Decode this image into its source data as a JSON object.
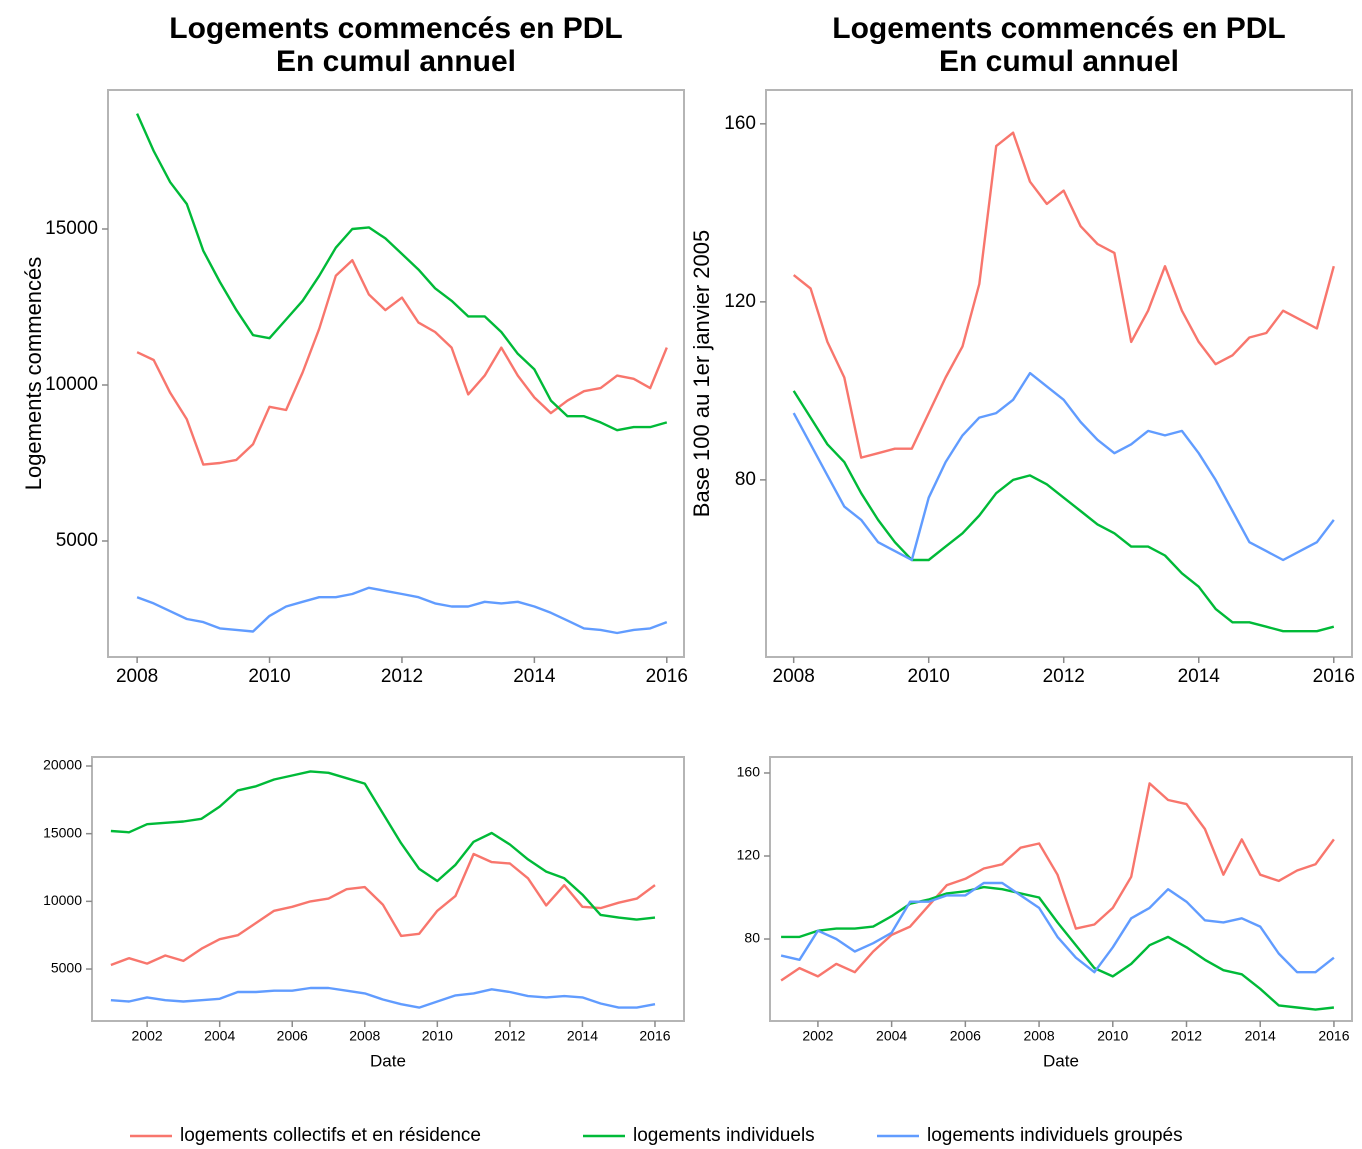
{
  "chart_data": [
    {
      "type": "line",
      "title": [
        "Logements commencés en PDL",
        "En cumul annuel"
      ],
      "y_label": "Logements commencés",
      "x": [
        2008,
        2008.25,
        2008.5,
        2008.75,
        2009,
        2009.25,
        2009.5,
        2009.75,
        2010,
        2010.25,
        2010.5,
        2010.75,
        2011,
        2011.25,
        2011.5,
        2011.75,
        2012,
        2012.25,
        2012.5,
        2012.75,
        2013,
        2013.25,
        2013.5,
        2013.75,
        2014,
        2014.25,
        2014.5,
        2014.75,
        2015,
        2015.25,
        2015.5,
        2015.75,
        2016
      ],
      "xlim": [
        2007.56,
        2016.26
      ],
      "xticks": [
        2008,
        2010,
        2012,
        2014,
        2016
      ],
      "ylim": [
        1282,
        19455
      ],
      "yticks": [
        5000,
        10000,
        15000
      ],
      "series": [
        {
          "name": "logements collectifs et en résidence",
          "color": "#F8766D",
          "values": [
            11050,
            10800,
            9750,
            8900,
            7450,
            7500,
            7600,
            8100,
            9300,
            9200,
            10400,
            11800,
            13500,
            14000,
            12900,
            12400,
            12800,
            12000,
            11700,
            11200,
            9700,
            10300,
            11200,
            10300,
            9600,
            9100,
            9500,
            9800,
            9900,
            10300,
            10200,
            9900,
            11200
          ]
        },
        {
          "name": "logements individuels",
          "color": "#00BA38",
          "values": [
            18700,
            17500,
            16500,
            15800,
            14300,
            13300,
            12400,
            11600,
            11500,
            12100,
            12700,
            13500,
            14400,
            15000,
            15050,
            14700,
            14200,
            13700,
            13100,
            12700,
            12200,
            12200,
            11700,
            11000,
            10500,
            9500,
            9000,
            9000,
            8800,
            8550,
            8650,
            8650,
            8800
          ]
        },
        {
          "name": "logements individuels groupés",
          "color": "#619CFF",
          "values": [
            3200,
            3000,
            2750,
            2500,
            2400,
            2200,
            2150,
            2100,
            2600,
            2900,
            3050,
            3200,
            3200,
            3300,
            3500,
            3400,
            3300,
            3200,
            3000,
            2900,
            2900,
            3050,
            3000,
            3050,
            2900,
            2700,
            2450,
            2200,
            2150,
            2050,
            2150,
            2200,
            2400
          ]
        }
      ],
      "legend": "bottom"
    },
    {
      "type": "line",
      "title": [
        "Logements commencés en PDL",
        "En cumul annuel"
      ],
      "y_label": "Base 100 au 1er janvier 2005",
      "x": [
        2008,
        2008.25,
        2008.5,
        2008.75,
        2009,
        2009.25,
        2009.5,
        2009.75,
        2010,
        2010.25,
        2010.5,
        2010.75,
        2011,
        2011.25,
        2011.5,
        2011.75,
        2012,
        2012.25,
        2012.5,
        2012.75,
        2013,
        2013.25,
        2013.5,
        2013.75,
        2014,
        2014.25,
        2014.5,
        2014.75,
        2015,
        2015.25,
        2015.5,
        2015.75,
        2016
      ],
      "xlim": [
        2007.59,
        2016.27
      ],
      "xticks": [
        2008,
        2010,
        2012,
        2014,
        2016
      ],
      "ylim": [
        40.2,
        167.6
      ],
      "yticks": [
        80,
        120,
        160
      ],
      "series": [
        {
          "name": "logements collectifs et en résidence",
          "color": "#F8766D",
          "values": [
            126,
            123,
            111,
            103,
            85,
            86,
            87,
            87,
            95,
            103,
            110,
            124,
            155,
            158,
            147,
            142,
            145,
            137,
            133,
            131,
            111,
            118,
            128,
            118,
            111,
            106,
            108,
            112,
            113,
            118,
            116,
            114,
            128
          ]
        },
        {
          "name": "logements individuels",
          "color": "#00BA38",
          "values": [
            100,
            94,
            88,
            84,
            77,
            71,
            66,
            62,
            62,
            65,
            68,
            72,
            77,
            80,
            81,
            79,
            76,
            73,
            70,
            68,
            65,
            65,
            63,
            59,
            56,
            51,
            48,
            48,
            47,
            46,
            46,
            46,
            47
          ]
        },
        {
          "name": "logements individuels groupés",
          "color": "#619CFF",
          "values": [
            95,
            88,
            81,
            74,
            71,
            66,
            64,
            62,
            76,
            84,
            90,
            94,
            95,
            98,
            104,
            101,
            98,
            93,
            89,
            86,
            88,
            91,
            90,
            91,
            86,
            80,
            73,
            66,
            64,
            62,
            64,
            66,
            71
          ]
        }
      ]
    },
    {
      "type": "line",
      "x_label": "Date",
      "x": [
        2001,
        2001.5,
        2002,
        2002.5,
        2003,
        2003.5,
        2004,
        2004.5,
        2005,
        2005.5,
        2006,
        2006.5,
        2007,
        2007.5,
        2008,
        2008.5,
        2009,
        2009.5,
        2010,
        2010.5,
        2011,
        2011.5,
        2012,
        2012.5,
        2013,
        2013.5,
        2014,
        2014.5,
        2015,
        2015.5,
        2016
      ],
      "xlim": [
        2000.48,
        2016.8
      ],
      "xticks": [
        2002,
        2004,
        2006,
        2008,
        2010,
        2012,
        2014,
        2016
      ],
      "ylim": [
        1160,
        20665
      ],
      "yticks": [
        5000,
        10000,
        15000,
        20000
      ],
      "series": [
        {
          "name": "logements collectifs et en résidence",
          "color": "#F8766D",
          "values": [
            5300,
            5800,
            5400,
            6000,
            5600,
            6500,
            7200,
            7500,
            8400,
            9300,
            9600,
            10000,
            10200,
            10900,
            11050,
            9750,
            7450,
            7600,
            9300,
            10400,
            13500,
            12900,
            12800,
            11700,
            9700,
            11200,
            9600,
            9500,
            9900,
            10200,
            11200
          ]
        },
        {
          "name": "logements individuels",
          "color": "#00BA38",
          "values": [
            15200,
            15100,
            15700,
            15800,
            15900,
            16100,
            17000,
            18200,
            18500,
            19000,
            19300,
            19600,
            19500,
            19100,
            18700,
            16500,
            14300,
            12400,
            11500,
            12700,
            14400,
            15050,
            14200,
            13100,
            12200,
            11700,
            10500,
            9000,
            8800,
            8650,
            8800
          ]
        },
        {
          "name": "logements individuels groupés",
          "color": "#619CFF",
          "values": [
            2700,
            2600,
            2900,
            2700,
            2600,
            2700,
            2800,
            3300,
            3300,
            3400,
            3400,
            3600,
            3600,
            3400,
            3200,
            2750,
            2400,
            2150,
            2600,
            3050,
            3200,
            3500,
            3300,
            3000,
            2900,
            3000,
            2900,
            2450,
            2150,
            2150,
            2400
          ]
        }
      ]
    },
    {
      "type": "line",
      "x_label": "Date",
      "x": [
        2001,
        2001.5,
        2002,
        2002.5,
        2003,
        2003.5,
        2004,
        2004.5,
        2005,
        2005.5,
        2006,
        2006.5,
        2007,
        2007.5,
        2008,
        2008.5,
        2009,
        2009.5,
        2010,
        2010.5,
        2011,
        2011.5,
        2012,
        2012.5,
        2013,
        2013.5,
        2014,
        2014.5,
        2015,
        2015.5,
        2016
      ],
      "xlim": [
        2000.7,
        2016.49
      ],
      "xticks": [
        2002,
        2004,
        2006,
        2008,
        2010,
        2012,
        2014,
        2016
      ],
      "ylim": [
        40.5,
        167.7
      ],
      "yticks": [
        80,
        120,
        160
      ],
      "series": [
        {
          "name": "logements collectifs et en résidence",
          "color": "#F8766D",
          "values": [
            60,
            66,
            62,
            68,
            64,
            74,
            82,
            86,
            96,
            106,
            109,
            114,
            116,
            124,
            126,
            111,
            85,
            87,
            95,
            110,
            155,
            147,
            145,
            133,
            111,
            128,
            111,
            108,
            113,
            116,
            128
          ]
        },
        {
          "name": "logements individuels",
          "color": "#00BA38",
          "values": [
            81,
            81,
            84,
            85,
            85,
            86,
            91,
            97,
            99,
            102,
            103,
            105,
            104,
            102,
            100,
            88,
            77,
            66,
            62,
            68,
            77,
            81,
            76,
            70,
            65,
            63,
            56,
            48,
            47,
            46,
            47
          ]
        },
        {
          "name": "logements individuels groupés",
          "color": "#619CFF",
          "values": [
            72,
            70,
            84,
            80,
            74,
            78,
            83,
            98,
            98,
            101,
            101,
            107,
            107,
            101,
            95,
            81,
            71,
            64,
            76,
            90,
            95,
            104,
            98,
            89,
            88,
            90,
            86,
            73,
            64,
            64,
            71
          ]
        }
      ]
    }
  ]
}
